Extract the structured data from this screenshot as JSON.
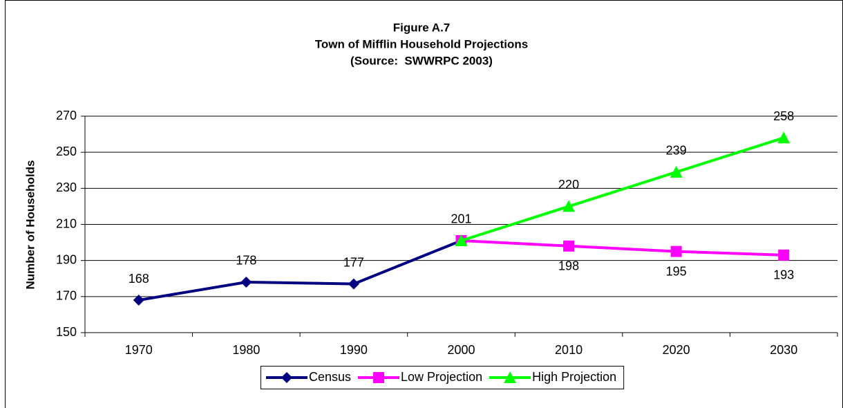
{
  "chart_data": {
    "type": "line",
    "title": [
      "Figure A.7",
      "Town of Mifflin Household Projections",
      "(Source:  SWWRPC 2003)"
    ],
    "y_label": "Number of Households",
    "categories": [
      "1970",
      "1980",
      "1990",
      "2000",
      "2010",
      "2020",
      "2030"
    ],
    "series": [
      {
        "name": "Census",
        "color": "#000080",
        "marker": "diamond",
        "label_position": "above",
        "values": [
          168,
          178,
          177,
          201,
          null,
          null,
          null
        ]
      },
      {
        "name": "Low Projection",
        "color": "#ff00ff",
        "marker": "square",
        "label_position": "below",
        "values": [
          null,
          null,
          null,
          201,
          198,
          195,
          193
        ]
      },
      {
        "name": "High Projection",
        "color": "#00ff00",
        "marker": "triangle",
        "label_position": "above",
        "values": [
          null,
          null,
          null,
          201,
          220,
          239,
          258
        ]
      }
    ],
    "ylim": [
      150,
      270
    ],
    "yticks": [
      150,
      170,
      190,
      210,
      230,
      250,
      270
    ],
    "grid": true,
    "legend": "bottom"
  }
}
